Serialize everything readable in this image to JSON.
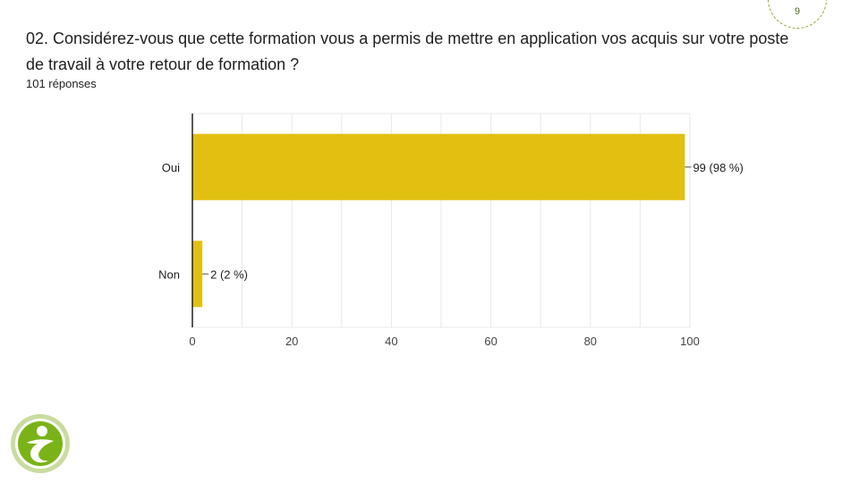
{
  "page": {
    "number": "9"
  },
  "question": {
    "text": "02. Considérez-vous que cette formation vous a permis de mettre en application vos acquis sur votre poste de travail à votre retour de formation ?",
    "responses": "101 réponses"
  },
  "colors": {
    "bar": "#e2c012",
    "grid": "#e8e8e8",
    "axis": "#202124",
    "logo_green": "#7ab317",
    "logo_ring": "#c9dca0"
  },
  "logo": {
    "icon": "person-swirl-logo"
  },
  "chart_data": {
    "type": "bar",
    "orientation": "horizontal",
    "categories": [
      "Oui",
      "Non"
    ],
    "values": [
      99,
      2
    ],
    "data_labels": [
      "99 (98 %)",
      "2 (2 %)"
    ],
    "xlim": [
      0,
      100
    ],
    "xticks": [
      0,
      20,
      40,
      60,
      80,
      100
    ],
    "grid": true,
    "title": "",
    "xlabel": "",
    "ylabel": ""
  }
}
